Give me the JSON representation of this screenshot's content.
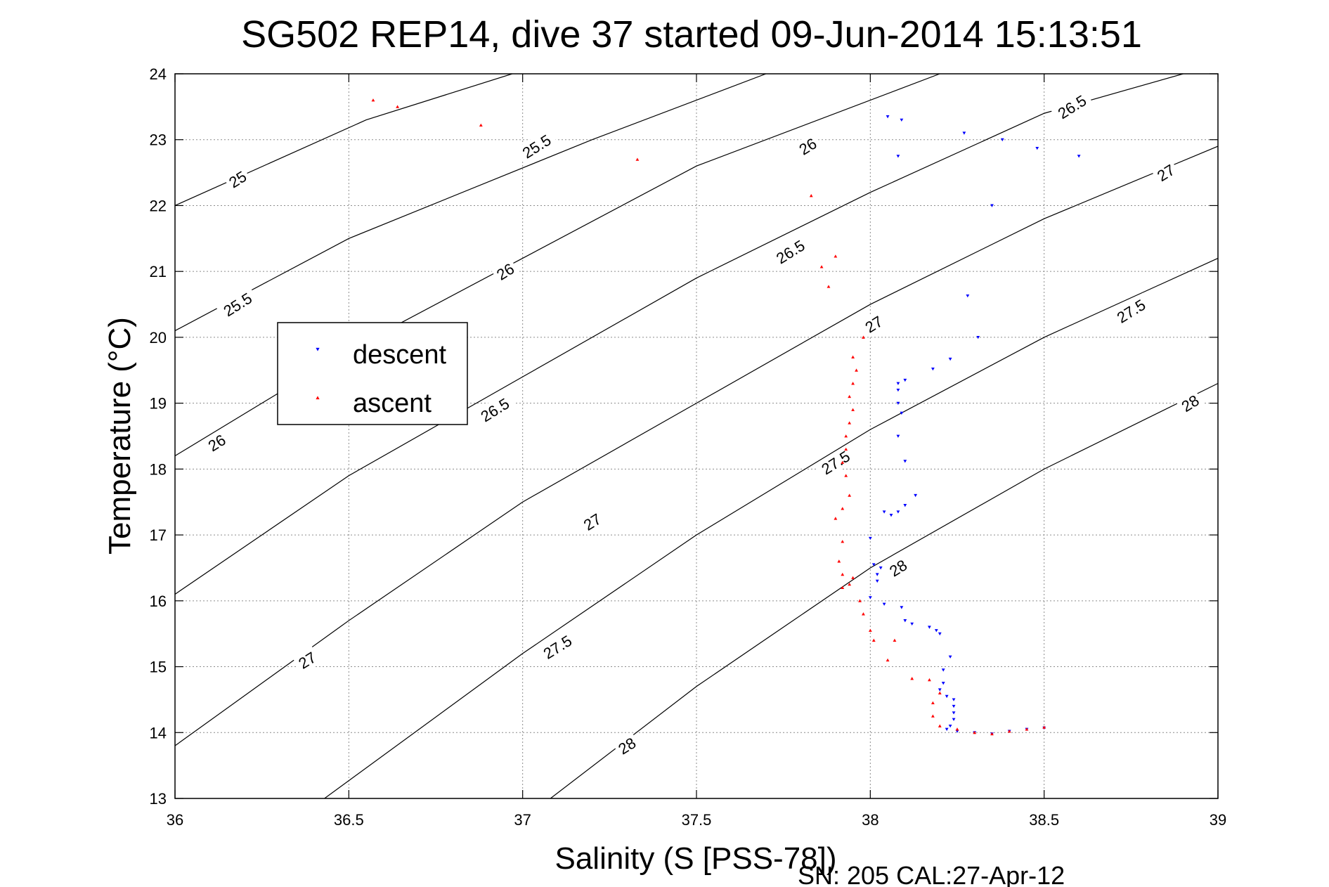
{
  "chart_data": {
    "type": "scatter",
    "title": "SG502 REP14, dive 37 started 09-Jun-2014 15:13:51",
    "xlabel": "Salinity (S [PSS-78])",
    "ylabel": "Temperature (°C)",
    "footer": "SN: 205  CAL:27-Apr-12",
    "xlim": [
      36,
      39
    ],
    "ylim": [
      13,
      24
    ],
    "xticks": [
      36,
      36.5,
      37,
      37.5,
      38,
      38.5,
      39
    ],
    "xtick_labels": [
      "36",
      "36.5",
      "37",
      "37.5",
      "38",
      "38.5",
      "39"
    ],
    "yticks": [
      13,
      14,
      15,
      16,
      17,
      18,
      19,
      20,
      21,
      22,
      23,
      24
    ],
    "ytick_labels": [
      "13",
      "14",
      "15",
      "16",
      "17",
      "18",
      "19",
      "20",
      "21",
      "22",
      "23",
      "24"
    ],
    "grid": true,
    "legend_position": "left",
    "contours": {
      "lines": [
        {
          "level": 25,
          "points": [
            [
              36,
              22.0
            ],
            [
              36.55,
              23.3
            ],
            [
              36.97,
              24.0
            ]
          ]
        },
        {
          "level": 25.5,
          "points": [
            [
              36,
              20.1
            ],
            [
              36.5,
              21.5
            ],
            [
              37.2,
              23.0
            ],
            [
              37.7,
              24.0
            ]
          ]
        },
        {
          "level": 26,
          "points": [
            [
              36,
              18.2
            ],
            [
              36.5,
              19.8
            ],
            [
              37.0,
              21.2
            ],
            [
              37.5,
              22.6
            ],
            [
              38.2,
              24.0
            ]
          ]
        },
        {
          "level": 26.5,
          "points": [
            [
              36,
              16.1
            ],
            [
              36.5,
              17.9
            ],
            [
              37.0,
              19.4
            ],
            [
              37.5,
              20.9
            ],
            [
              38.0,
              22.2
            ],
            [
              38.5,
              23.4
            ],
            [
              38.9,
              24.0
            ]
          ]
        },
        {
          "level": 27,
          "points": [
            [
              36,
              13.8
            ],
            [
              36.5,
              15.7
            ],
            [
              37.0,
              17.5
            ],
            [
              37.5,
              19.0
            ],
            [
              38.0,
              20.5
            ],
            [
              38.5,
              21.8
            ],
            [
              39,
              22.9
            ]
          ]
        },
        {
          "level": 27.5,
          "points": [
            [
              36.43,
              13.0
            ],
            [
              37.0,
              15.2
            ],
            [
              37.5,
              17.0
            ],
            [
              38.0,
              18.6
            ],
            [
              38.5,
              20.0
            ],
            [
              39,
              21.2
            ]
          ]
        },
        {
          "level": 28,
          "points": [
            [
              37.08,
              13.0
            ],
            [
              37.5,
              14.7
            ],
            [
              38.0,
              16.5
            ],
            [
              38.5,
              18.0
            ],
            [
              39,
              19.3
            ]
          ]
        }
      ],
      "labels": [
        {
          "text": "25",
          "x": 36.18,
          "y": 22.4
        },
        {
          "text": "25.5",
          "x": 37.04,
          "y": 22.9
        },
        {
          "text": "25.5",
          "x": 36.18,
          "y": 20.5
        },
        {
          "text": "26",
          "x": 37.82,
          "y": 22.9
        },
        {
          "text": "26",
          "x": 36.95,
          "y": 21.0
        },
        {
          "text": "26",
          "x": 36.12,
          "y": 18.4
        },
        {
          "text": "26.5",
          "x": 38.58,
          "y": 23.5
        },
        {
          "text": "26.5",
          "x": 37.77,
          "y": 21.3
        },
        {
          "text": "26.5",
          "x": 36.92,
          "y": 18.9
        },
        {
          "text": "27",
          "x": 38.85,
          "y": 22.5
        },
        {
          "text": "27",
          "x": 38.01,
          "y": 20.2
        },
        {
          "text": "27",
          "x": 37.2,
          "y": 17.2
        },
        {
          "text": "27",
          "x": 36.38,
          "y": 15.1
        },
        {
          "text": "27.5",
          "x": 38.75,
          "y": 20.4
        },
        {
          "text": "27.5",
          "x": 37.9,
          "y": 18.1
        },
        {
          "text": "27.5",
          "x": 37.1,
          "y": 15.3
        },
        {
          "text": "28",
          "x": 38.92,
          "y": 19.0
        },
        {
          "text": "28",
          "x": 38.08,
          "y": 16.5
        },
        {
          "text": "28",
          "x": 37.3,
          "y": 13.8
        }
      ]
    },
    "series": [
      {
        "name": "descent",
        "color": "#0000ff",
        "marker": "triangle-down",
        "points": [
          [
            38.05,
            23.35
          ],
          [
            38.09,
            23.3
          ],
          [
            38.08,
            22.75
          ],
          [
            38.27,
            23.1
          ],
          [
            38.38,
            23.0
          ],
          [
            38.48,
            22.87
          ],
          [
            38.6,
            22.75
          ],
          [
            38.35,
            22.0
          ],
          [
            38.28,
            20.63
          ],
          [
            38.31,
            20.0
          ],
          [
            38.23,
            19.67
          ],
          [
            38.18,
            19.52
          ],
          [
            38.1,
            19.35
          ],
          [
            38.08,
            19.3
          ],
          [
            38.08,
            19.2
          ],
          [
            38.08,
            19.0
          ],
          [
            38.09,
            18.85
          ],
          [
            38.08,
            18.5
          ],
          [
            38.1,
            18.12
          ],
          [
            38.13,
            17.6
          ],
          [
            38.1,
            17.45
          ],
          [
            38.08,
            17.35
          ],
          [
            38.06,
            17.3
          ],
          [
            38.04,
            17.35
          ],
          [
            38.0,
            16.95
          ],
          [
            38.01,
            16.55
          ],
          [
            38.03,
            16.5
          ],
          [
            38.02,
            16.4
          ],
          [
            38.02,
            16.3
          ],
          [
            38.0,
            16.05
          ],
          [
            38.04,
            15.95
          ],
          [
            38.09,
            15.9
          ],
          [
            38.1,
            15.7
          ],
          [
            38.12,
            15.65
          ],
          [
            38.17,
            15.6
          ],
          [
            38.19,
            15.55
          ],
          [
            38.2,
            15.5
          ],
          [
            38.23,
            15.15
          ],
          [
            38.21,
            14.95
          ],
          [
            38.21,
            14.75
          ],
          [
            38.2,
            14.65
          ],
          [
            38.22,
            14.55
          ],
          [
            38.24,
            14.5
          ],
          [
            38.24,
            14.4
          ],
          [
            38.24,
            14.3
          ],
          [
            38.24,
            14.2
          ],
          [
            38.23,
            14.1
          ],
          [
            38.22,
            14.05
          ],
          [
            38.25,
            14.02
          ],
          [
            38.3,
            14.0
          ],
          [
            38.35,
            13.98
          ],
          [
            38.4,
            14.02
          ],
          [
            38.45,
            14.05
          ],
          [
            38.5,
            14.07
          ]
        ]
      },
      {
        "name": "ascent",
        "color": "#ff0000",
        "marker": "triangle-up",
        "points": [
          [
            36.57,
            23.6
          ],
          [
            36.64,
            23.5
          ],
          [
            36.88,
            23.22
          ],
          [
            37.33,
            22.7
          ],
          [
            37.83,
            22.15
          ],
          [
            37.9,
            21.23
          ],
          [
            37.86,
            21.07
          ],
          [
            37.88,
            20.77
          ],
          [
            37.98,
            20.0
          ],
          [
            37.95,
            19.7
          ],
          [
            37.96,
            19.5
          ],
          [
            37.95,
            19.3
          ],
          [
            37.94,
            19.1
          ],
          [
            37.95,
            18.9
          ],
          [
            37.94,
            18.7
          ],
          [
            37.93,
            18.5
          ],
          [
            37.93,
            18.3
          ],
          [
            37.92,
            18.1
          ],
          [
            37.93,
            17.9
          ],
          [
            37.94,
            17.6
          ],
          [
            37.92,
            17.4
          ],
          [
            37.9,
            17.25
          ],
          [
            37.92,
            16.9
          ],
          [
            37.91,
            16.6
          ],
          [
            37.92,
            16.4
          ],
          [
            37.95,
            16.35
          ],
          [
            37.94,
            16.25
          ],
          [
            37.92,
            16.2
          ],
          [
            37.97,
            16.0
          ],
          [
            37.98,
            15.8
          ],
          [
            38.0,
            15.55
          ],
          [
            38.01,
            15.4
          ],
          [
            38.07,
            15.4
          ],
          [
            38.05,
            15.1
          ],
          [
            38.12,
            14.82
          ],
          [
            38.17,
            14.8
          ],
          [
            38.2,
            14.6
          ],
          [
            38.18,
            14.45
          ],
          [
            38.18,
            14.25
          ],
          [
            38.2,
            14.1
          ],
          [
            38.25,
            14.05
          ],
          [
            38.3,
            14.0
          ],
          [
            38.35,
            13.98
          ],
          [
            38.4,
            14.02
          ],
          [
            38.45,
            14.05
          ],
          [
            38.5,
            14.08
          ]
        ]
      }
    ]
  }
}
